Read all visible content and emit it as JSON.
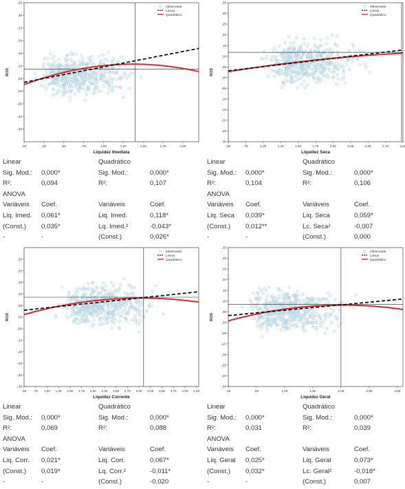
{
  "legend": {
    "observed": "Observado",
    "linear": "Linear",
    "quadratic": "Quadrático"
  },
  "ylabel": "ROS",
  "colors": {
    "observed": "#b7d6e4",
    "linear": "#111111",
    "quadratic": "#d9262b",
    "frame": "#555555"
  },
  "charts": [
    {
      "chart_data": {
        "type": "scatter",
        "xlabel": "Liquidez Imediata",
        "ylabel": "ROS",
        "xlim": [
          0,
          2.2
        ],
        "ylim": [
          -0.2,
          0.35
        ],
        "xticks": [
          0,
          0.25,
          0.5,
          0.75,
          1.0,
          1.25,
          1.5,
          1.75,
          2.0
        ],
        "xtick_labels": [
          ",00",
          ",25",
          ",50",
          ",75",
          "1,00",
          "1,25",
          "1,50",
          "1,75",
          "2,00"
        ],
        "yticks": [
          -0.15,
          -0.1,
          -0.05,
          0,
          0.05,
          0.1,
          0.15,
          0.2,
          0.25,
          0.3,
          0.35
        ],
        "ytick_labels": [
          "-,15",
          "-,10",
          "-,05",
          ",00",
          ",05",
          ",10",
          ",15",
          ",20",
          ",25",
          ",30",
          ",35"
        ],
        "ref_x": 1.4,
        "ref_y": 0.087,
        "scatter_center": [
          0.55,
          0.065
        ],
        "linear": {
          "intercept": 0.035,
          "slope": 0.061
        },
        "quadratic": {
          "c0": 0.026,
          "c1": 0.118,
          "c2": -0.043
        },
        "series": [
          {
            "name": "Observado"
          },
          {
            "name": "Linear"
          },
          {
            "name": "Quadrático"
          }
        ]
      },
      "stats": {
        "rows": [
          [
            "Linear",
            "",
            "Quadrático",
            ""
          ],
          [
            "Sig. Mod.:",
            "0,000*",
            "Sig. Mod.:",
            "0,000*"
          ],
          [
            "R²:",
            "0,094",
            "R²:",
            "0,107"
          ],
          [
            "ANOVA",
            "",
            "",
            ""
          ],
          [
            "Variáveis",
            "Coef.",
            "Variáveis",
            "Coef."
          ],
          [
            "Liq. Imed.",
            "0,061*",
            "Liq. Imed.",
            "0,118*"
          ],
          [
            "(Const.)",
            "0,035*",
            "Lq. Imed.²",
            "-0,043*"
          ],
          [
            "-",
            "-",
            "(Const.)",
            "0,026*"
          ]
        ]
      }
    },
    {
      "chart_data": {
        "type": "scatter",
        "xlabel": "Liquidez Seca",
        "ylabel": "ROS",
        "xlim": [
          0.5,
          3.0
        ],
        "ylim": [
          -0.3,
          0.35
        ],
        "xticks": [
          0.5,
          0.75,
          1.0,
          1.25,
          1.5,
          1.75,
          2.0,
          2.25,
          2.5,
          2.75,
          3.0
        ],
        "xtick_labels": [
          ",50",
          ",75",
          "1,00",
          "1,25",
          "1,50",
          "1,75",
          "2,00",
          "2,25",
          "2,50",
          "2,75",
          "3,00"
        ],
        "yticks": [
          -0.3,
          -0.25,
          -0.2,
          -0.15,
          -0.1,
          -0.05,
          0,
          0.05,
          0.1,
          0.15,
          0.2,
          0.25,
          0.3,
          0.35
        ],
        "ytick_labels": [
          "-,30",
          "-,25",
          "-,20",
          "-,15",
          "-,10",
          "-,05",
          ",00",
          ",05",
          ",10",
          ",15",
          ",20",
          ",25",
          ",30",
          ",35"
        ],
        "ref_x": 2.98,
        "ref_y": 0.118,
        "scatter_center": [
          1.45,
          0.07
        ],
        "linear": {
          "intercept": 0.012,
          "slope": 0.039
        },
        "quadratic": {
          "c0": 0.0,
          "c1": 0.059,
          "c2": -0.007
        },
        "series": [
          {
            "name": "Observado"
          },
          {
            "name": "Linear"
          },
          {
            "name": "Quadrático"
          }
        ]
      },
      "stats": {
        "rows": [
          [
            "Linear",
            "",
            "Quadrático",
            ""
          ],
          [
            "Sig. Mod.:",
            "0,000*",
            "Sig. Mod.:",
            "0,000*"
          ],
          [
            "R²:",
            "0,104",
            "R²:",
            "0,106"
          ],
          [
            "ANOVA",
            "",
            "",
            ""
          ],
          [
            "Variáveis",
            "Coef.",
            "Variáveis",
            "Coef."
          ],
          [
            "Liq. Seca",
            "0,039*",
            "Liq. Seca",
            "0,059*"
          ],
          [
            "(Const.)",
            "0,012**",
            "Lc. Seca²",
            "-0,007"
          ],
          [
            "-",
            "-",
            "(Const.)",
            "0,000"
          ]
        ]
      }
    },
    {
      "chart_data": {
        "type": "scatter",
        "xlabel": "Liquidez Corrente",
        "ylabel": "ROS",
        "xlim": [
          0.5,
          4.3
        ],
        "ylim": [
          -0.3,
          0.3
        ],
        "xticks": [
          0.5,
          0.75,
          1.0,
          1.25,
          1.5,
          1.75,
          2.0,
          2.25,
          2.5,
          2.75,
          3.0,
          3.25,
          3.5,
          3.75,
          4.0,
          4.25
        ],
        "xtick_labels": [
          ",50",
          ",75",
          "1,00",
          "1,25",
          "1,50",
          "1,75",
          "2,00",
          "2,25",
          "2,50",
          "2,75",
          "3,00",
          "3,25",
          "3,50",
          "3,75",
          "4,00",
          "4,25"
        ],
        "yticks": [
          -0.3,
          -0.25,
          -0.2,
          -0.15,
          -0.1,
          -0.05,
          0,
          0.05,
          0.1,
          0.15,
          0.2,
          0.25
        ],
        "ytick_labels": [
          "-,30",
          "-,25",
          "-,20",
          "-,15",
          "-,10",
          "-,05",
          ",00",
          ",05",
          ",10",
          ",15",
          ",20",
          ",25"
        ],
        "ref_x": 3.1,
        "ref_y": 0.086,
        "scatter_center": [
          1.9,
          0.05
        ],
        "linear": {
          "intercept": 0.019,
          "slope": 0.021
        },
        "quadratic": {
          "c0": -0.02,
          "c1": 0.067,
          "c2": -0.011
        },
        "series": [
          {
            "name": "Observado"
          },
          {
            "name": "Linear"
          },
          {
            "name": "Quadrático"
          }
        ]
      },
      "stats": {
        "rows": [
          [
            "Linear",
            "",
            "Quadrático",
            ""
          ],
          [
            "Sig. Mod.:",
            "0,000*",
            "Sig. Mod.:",
            "0,000*"
          ],
          [
            "R²:",
            "0,069",
            "R²:",
            "0,088"
          ],
          [
            "ANOVA",
            "",
            "",
            ""
          ],
          [
            "Variáveis",
            "Coef.",
            "Variáveis",
            "Coef."
          ],
          [
            "Liq. Corr.",
            "0,021*",
            "Liq. Corr.",
            "0,067*"
          ],
          [
            "(Const.)",
            "0,019*",
            "Lq. Corr.²",
            "-0,011*"
          ],
          [
            "-",
            "-",
            "(Const.)",
            "-0,020"
          ]
        ]
      }
    },
    {
      "chart_data": {
        "type": "scatter",
        "xlabel": "Liquidez Geral",
        "ylabel": "ROS",
        "xlim": [
          0,
          3.1
        ],
        "ylim": [
          -0.3,
          0.35
        ],
        "xticks": [
          0,
          0.5,
          1.0,
          1.5,
          2.0,
          2.5,
          3.0
        ],
        "xtick_labels": [
          ",00",
          ",50",
          "1,00",
          "1,50",
          "2,00",
          "2,50",
          "3,00"
        ],
        "yticks": [
          -0.3,
          -0.25,
          -0.2,
          -0.15,
          -0.1,
          -0.05,
          0,
          0.05,
          0.1,
          0.15,
          0.2,
          0.25,
          0.3,
          0.35
        ],
        "ytick_labels": [
          "-,30",
          "-,25",
          "-,20",
          "-,15",
          "-,10",
          "-,05",
          ",00",
          ",05",
          ",10",
          ",15",
          ",20",
          ",25",
          ",30",
          ",35"
        ],
        "ref_x": 2.0,
        "ref_y": 0.085,
        "scatter_center": [
          0.85,
          0.055
        ],
        "linear": {
          "intercept": 0.032,
          "slope": 0.025
        },
        "quadratic": {
          "c0": 0.007,
          "c1": 0.073,
          "c2": -0.018
        },
        "series": [
          {
            "name": "Observado"
          },
          {
            "name": "Linear"
          },
          {
            "name": "Quadrático"
          }
        ]
      },
      "stats": {
        "rows": [
          [
            "Linear",
            "",
            "Quadrático",
            ""
          ],
          [
            "Sig. Mod.:",
            "0,000*",
            "Sig. Mod.:",
            "0,000*"
          ],
          [
            "R²:",
            "0,031",
            "R²:",
            "0,039"
          ],
          [
            "ANOVA",
            "",
            "",
            ""
          ],
          [
            "Variáveis",
            "Coef.",
            "Variáveis",
            "Coef."
          ],
          [
            "Liq. Geral",
            "0,025*",
            "Liq. Geral",
            "0,073*"
          ],
          [
            "(Const.)",
            "0,032*",
            "Lc. Geral²",
            "-0,018*"
          ],
          [
            "-",
            "-",
            "(Const.)",
            "0,007"
          ]
        ]
      }
    }
  ]
}
